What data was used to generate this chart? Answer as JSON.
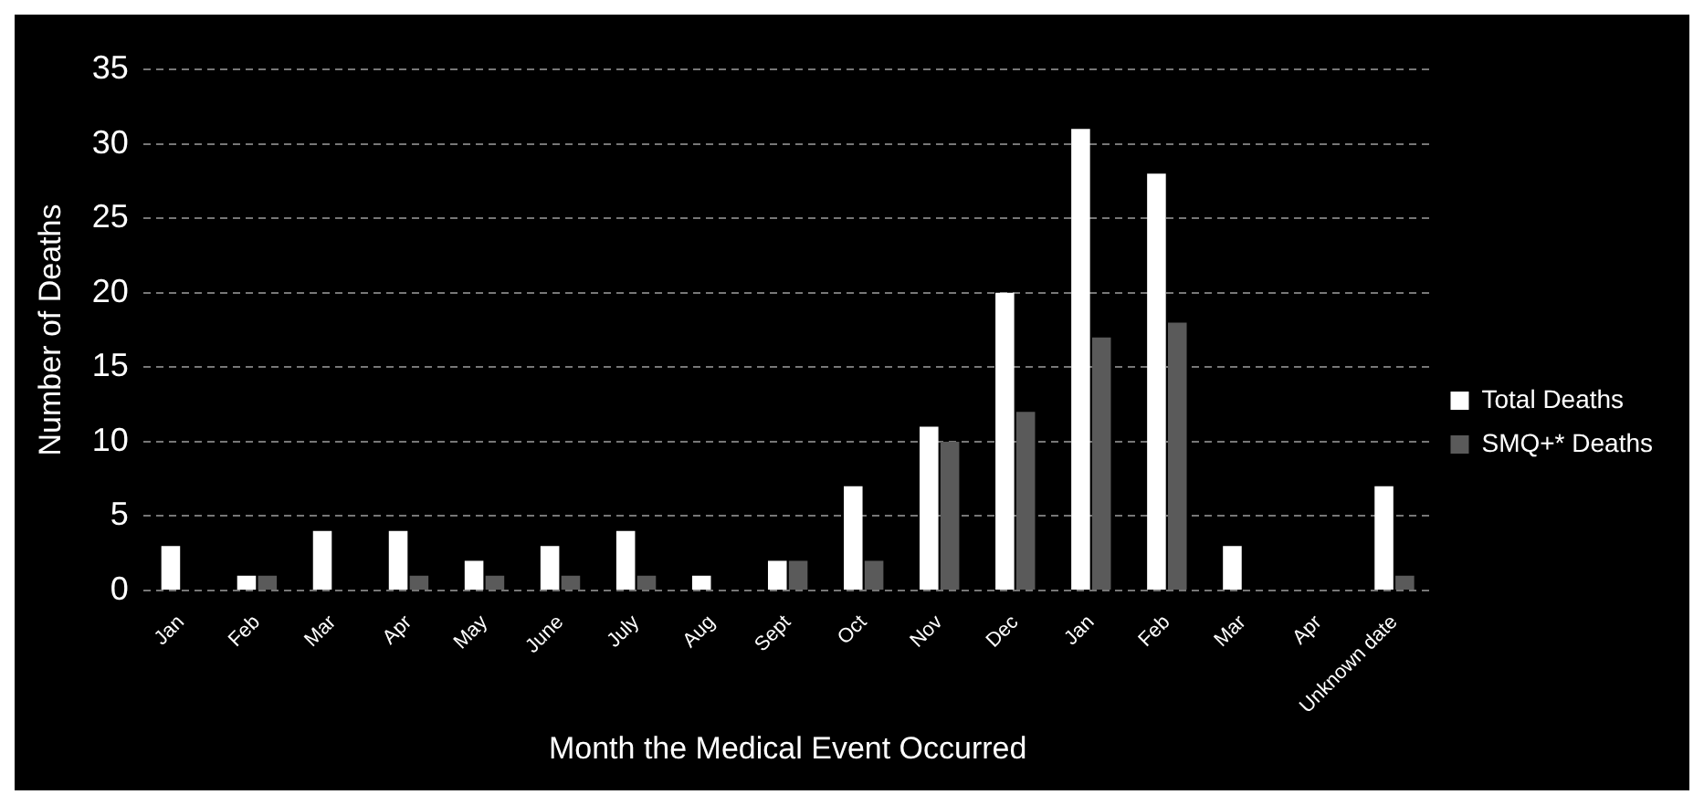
{
  "chart_data": {
    "type": "bar",
    "xlabel": "Month the Medical Event Occurred",
    "ylabel": "Number of Deaths",
    "categories": [
      "Jan",
      "Feb",
      "Mar",
      "Apr",
      "May",
      "June",
      "July",
      "Aug",
      "Sept",
      "Oct",
      "Nov",
      "Dec",
      "Jan",
      "Feb",
      "Mar",
      "Apr",
      "Unknown date"
    ],
    "series": [
      {
        "name": "Total Deaths",
        "color": "#ffffff",
        "values": [
          3,
          1,
          4,
          4,
          2,
          3,
          4,
          1,
          2,
          7,
          11,
          20,
          31,
          28,
          3,
          0,
          7
        ]
      },
      {
        "name": "SMQ+* Deaths",
        "color": "#5a5a5a",
        "values": [
          0,
          1,
          0,
          1,
          1,
          1,
          1,
          0,
          2,
          2,
          10,
          12,
          17,
          18,
          0,
          0,
          1
        ]
      }
    ],
    "ylim": [
      0,
      35
    ],
    "yticks": [
      0,
      5,
      10,
      15,
      20,
      25,
      30,
      35
    ],
    "grid": "y",
    "legend": "right"
  }
}
